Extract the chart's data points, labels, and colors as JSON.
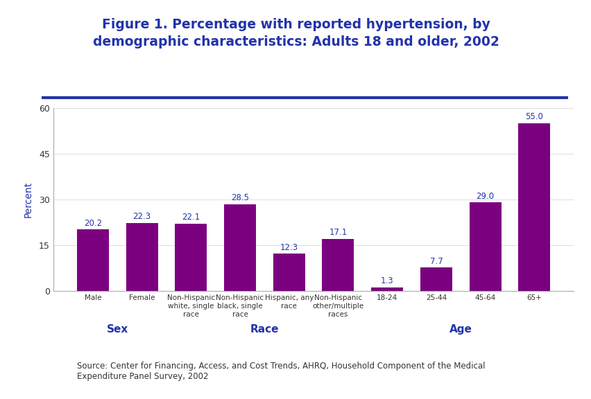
{
  "title_line1": "Figure 1. Percentage with reported hypertension, by",
  "title_line2": "demographic characteristics: Adults 18 and older, 2002",
  "title_color": "#2233AA",
  "title_fontsize": 13.5,
  "bar_color": "#7B0080",
  "categories": [
    "Male",
    "Female",
    "Non-Hispanic\nwhite, single\nrace",
    "Non-Hispanic\nblack, single\nrace",
    "Hispanic, any\nrace",
    "Non-Hispanic\nother/multiple\nraces",
    "18-24",
    "25-44",
    "45-64",
    "65+"
  ],
  "values": [
    20.2,
    22.3,
    22.1,
    28.5,
    12.3,
    17.1,
    1.3,
    7.7,
    29.0,
    55.0
  ],
  "ylabel": "Percent",
  "ylabel_color": "#2233AA",
  "ylim": [
    0,
    60
  ],
  "yticks": [
    0,
    15,
    30,
    45,
    60
  ],
  "group_labels": [
    "Sex",
    "Race",
    "Age"
  ],
  "group_centers": [
    0.5,
    3.5,
    7.5
  ],
  "group_label_color": "#2233AA",
  "group_label_fontsize": 11,
  "source_text": "Source: Center for Financing, Access, and Cost Trends, AHRQ, Household Component of the Medical\nExpenditure Panel Survey, 2002",
  "source_color": "#333333",
  "source_fontsize": 8.5,
  "divider_color": "#2233AA",
  "background_color": "#FFFFFF",
  "value_label_color": "#2233AA",
  "value_label_fontsize": 8.5,
  "tick_label_fontsize": 7.5,
  "tick_label_color": "#333333",
  "ytick_fontsize": 9,
  "ylabel_fontsize": 10
}
